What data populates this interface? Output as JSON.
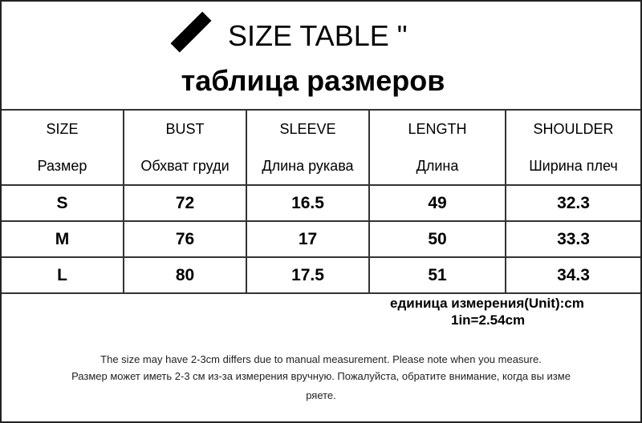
{
  "title": {
    "en": "SIZE TABLE \"",
    "ru": "таблица размеров"
  },
  "table": {
    "headers": [
      {
        "en": "SIZE",
        "ru": "Размер"
      },
      {
        "en": "BUST",
        "ru": "Обхват груди"
      },
      {
        "en": "SLEEVE",
        "ru": "Длина рукава"
      },
      {
        "en": "LENGTH",
        "ru": "Длина"
      },
      {
        "en": "SHOULDER",
        "ru": "Ширина плеч"
      }
    ],
    "rows": [
      [
        "S",
        "72",
        "16.5",
        "49",
        "32.3"
      ],
      [
        "M",
        "76",
        "17",
        "50",
        "33.3"
      ],
      [
        "L",
        "80",
        "17.5",
        "51",
        "34.3"
      ]
    ]
  },
  "unit": "единица измерения(Unit):cm",
  "conversion": "1in=2.54cm",
  "notes": [
    "The size may have 2-3cm differs due to manual measurement. Please note when you measure.",
    "Размер может иметь 2-3 см из-за измерения вручную. Пожалуйста, обратите внимание, когда вы изме",
    "ряете."
  ]
}
